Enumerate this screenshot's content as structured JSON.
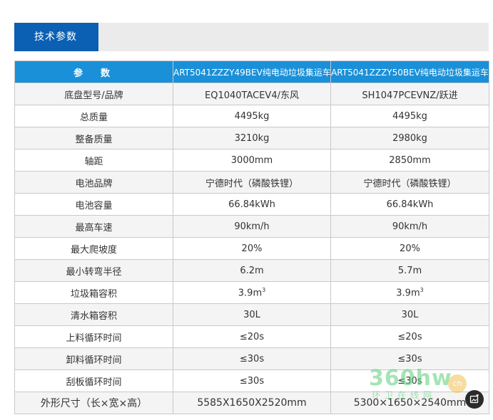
{
  "section": {
    "title": "技术参数"
  },
  "table": {
    "headers": [
      "参　数",
      "ART5041ZZZY49BEV纯电动垃圾集运车",
      "ART5041ZZZY50BEV纯电动垃圾集运车"
    ],
    "rows": [
      [
        "底盘型号/品牌",
        "EQ1040TACEV4/东风",
        "SH1047PCEVNZ/跃进"
      ],
      [
        "总质量",
        "4495kg",
        "4495kg"
      ],
      [
        "整备质量",
        "3210kg",
        "2980kg"
      ],
      [
        "轴距",
        "3000mm",
        "2850mm"
      ],
      [
        "电池品牌",
        "宁德时代（磷酸铁锂）",
        "宁德时代（磷酸铁锂）"
      ],
      [
        "电池容量",
        "66.84kWh",
        "66.84kWh"
      ],
      [
        "最高车速",
        "90km/h",
        "90km/h"
      ],
      [
        "最大爬坡度",
        "20%",
        "20%"
      ],
      [
        "最小转弯半径",
        "6.2m",
        "5.7m"
      ],
      [
        "垃圾箱容积",
        "3.9m",
        "3.9m"
      ],
      [
        "清水箱容积",
        "30L",
        "30L"
      ],
      [
        "上料循环时间",
        "≤20s",
        "≤20s"
      ],
      [
        "卸料循环时间",
        "≤30s",
        "≤30s"
      ],
      [
        "刮板循环时间",
        "≤30s",
        "≤30s"
      ],
      [
        "外形尺寸（长×宽×高）",
        "5585X1650X2520mm",
        "5300×1650×2540mm"
      ]
    ],
    "volume_superscript": "3"
  },
  "watermark": {
    "brand": "360hw",
    "tagline": "环卫在线网",
    "badge": "cn"
  },
  "colors": {
    "tab_blue": "#0b60b3",
    "header_blue": "#1a90d8",
    "header_bar_gray": "#ebebeb"
  },
  "icons": {
    "image_tool": "image-edit-icon"
  }
}
